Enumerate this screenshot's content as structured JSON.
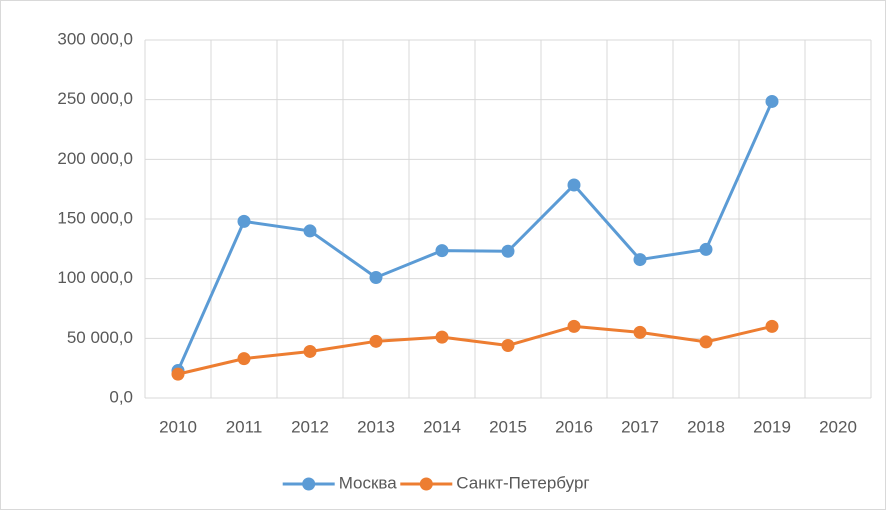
{
  "chart_data": {
    "type": "line",
    "categories": [
      "2010",
      "2011",
      "2012",
      "2013",
      "2014",
      "2015",
      "2016",
      "2017",
      "2018",
      "2019",
      "2020"
    ],
    "series": [
      {
        "name": "Москва",
        "color": "#5b9bd5",
        "values": [
          23000,
          148000,
          140000,
          101000,
          123500,
          123000,
          178500,
          116000,
          124500,
          248500,
          null
        ]
      },
      {
        "name": "Санкт-Петербург",
        "color": "#ed7d31",
        "values": [
          20000,
          33000,
          39000,
          47500,
          51000,
          44000,
          60000,
          55000,
          47000,
          60000,
          null
        ]
      }
    ],
    "ylim": [
      0,
      300000
    ],
    "yticks": [
      {
        "value": 0,
        "label": "0,0"
      },
      {
        "value": 50000,
        "label": "50 000,0"
      },
      {
        "value": 100000,
        "label": "100 000,0"
      },
      {
        "value": 150000,
        "label": "150 000,0"
      },
      {
        "value": 200000,
        "label": "200 000,0"
      },
      {
        "value": 250000,
        "label": "250 000,0"
      },
      {
        "value": 300000,
        "label": "300 000,0"
      }
    ],
    "grid": true,
    "legend": "bottom"
  }
}
